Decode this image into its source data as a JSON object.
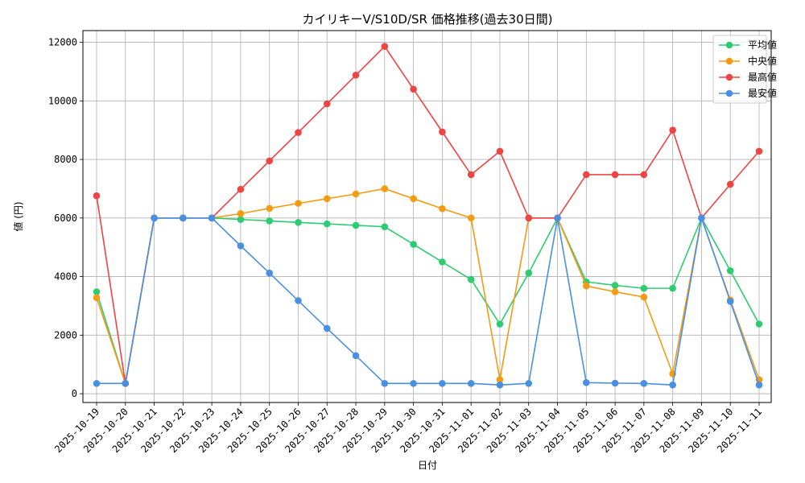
{
  "chart_data": {
    "type": "line",
    "title": "カイリキーV/S10D/SR 価格推移(過去30日間)",
    "xlabel": "日付",
    "ylabel": "値 (円)",
    "ylim": [
      -300,
      12400
    ],
    "yticks": [
      0,
      2000,
      4000,
      6000,
      8000,
      10000,
      12000
    ],
    "grid": true,
    "legend_position": "top-right",
    "categories": [
      "2025-10-19",
      "2025-10-20",
      "2025-10-21",
      "2025-10-22",
      "2025-10-23",
      "2025-10-24",
      "2025-10-25",
      "2025-10-26",
      "2025-10-27",
      "2025-10-28",
      "2025-10-29",
      "2025-10-30",
      "2025-10-31",
      "2025-11-01",
      "2025-11-02",
      "2025-11-03",
      "2025-11-04",
      "2025-11-05",
      "2025-11-06",
      "2025-11-07",
      "2025-11-08",
      "2025-11-09",
      "2025-11-10",
      "2025-11-11"
    ],
    "series": [
      {
        "name": "平均値",
        "color": "#2ecc71",
        "values": [
          3480,
          350,
          6000,
          6000,
          6000,
          5950,
          5900,
          5850,
          5800,
          5750,
          5700,
          5100,
          4500,
          3900,
          2380,
          4120,
          6000,
          3820,
          3700,
          3600,
          3600,
          6000,
          4200,
          2380
        ]
      },
      {
        "name": "中央値",
        "color": "#f39c12",
        "values": [
          3280,
          350,
          6000,
          6000,
          6000,
          6150,
          6330,
          6500,
          6660,
          6820,
          7000,
          6660,
          6320,
          6000,
          480,
          6000,
          6000,
          3680,
          3480,
          3300,
          680,
          6000,
          3200,
          480
        ]
      },
      {
        "name": "最高値",
        "color": "#ef4444",
        "values": [
          6760,
          350,
          6000,
          6000,
          6000,
          6980,
          7950,
          8920,
          9900,
          10880,
          11860,
          10400,
          8940,
          7480,
          8280,
          6000,
          6000,
          7480,
          7480,
          7480,
          9000,
          6000,
          7150,
          8280
        ]
      },
      {
        "name": "最安値",
        "color": "#4a90e2",
        "values": [
          350,
          350,
          6000,
          6000,
          6000,
          5050,
          4120,
          3180,
          2230,
          1300,
          350,
          350,
          350,
          350,
          300,
          350,
          6000,
          380,
          360,
          350,
          300,
          6000,
          3150,
          300
        ]
      }
    ]
  }
}
